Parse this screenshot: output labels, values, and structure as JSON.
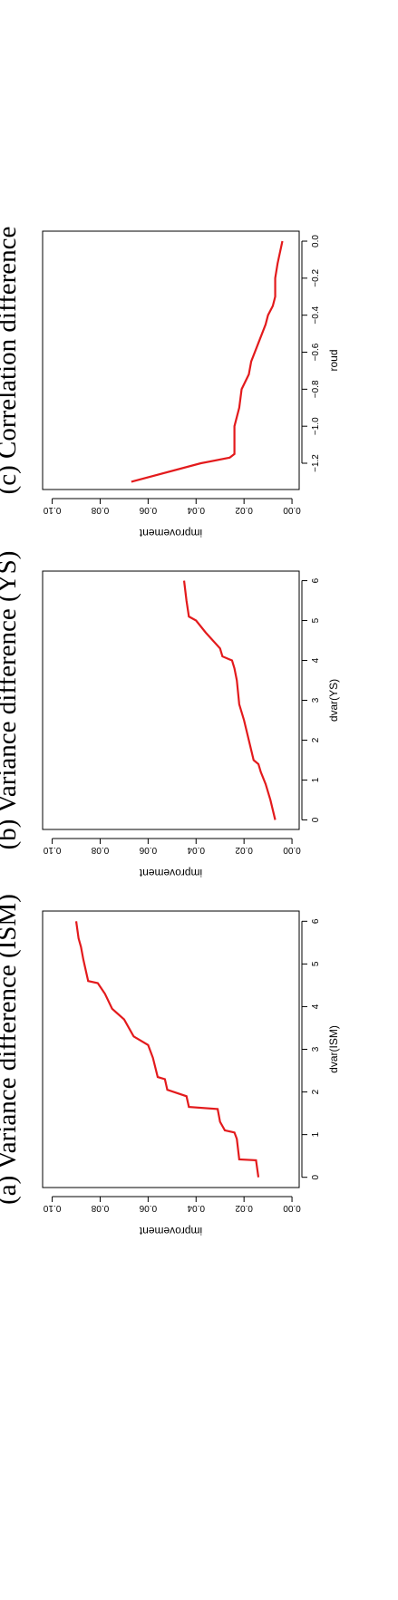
{
  "chart_data": [
    {
      "type": "line",
      "title": "(a) Variance difference (ISM)",
      "x_label": "dvar(ISM)",
      "y_label": "improvement",
      "x": [
        0,
        0.4,
        0.42,
        0.9,
        1.05,
        1.1,
        1.3,
        1.6,
        1.65,
        1.9,
        2.05,
        2.3,
        2.35,
        2.8,
        3.1,
        3.3,
        3.7,
        3.95,
        4.3,
        4.55,
        4.6,
        5.1,
        5.4,
        5.6,
        6
      ],
      "series": [
        {
          "color": "#e31a1c",
          "values": [
            0.014,
            0.015,
            0.022,
            0.023,
            0.024,
            0.028,
            0.03,
            0.031,
            0.043,
            0.044,
            0.052,
            0.053,
            0.056,
            0.058,
            0.06,
            0.066,
            0.07,
            0.075,
            0.078,
            0.081,
            0.085,
            0.087,
            0.088,
            0.089,
            0.09
          ]
        }
      ],
      "xlim": [
        -0.24,
        6.24
      ],
      "xticks": [
        0,
        1,
        2,
        3,
        4,
        5,
        6
      ],
      "ylim": [
        -0.003,
        0.104
      ],
      "yticks": [
        {
          "value": 0,
          "label": "0.00"
        },
        {
          "value": 0.02,
          "label": "0.02"
        },
        {
          "value": 0.04,
          "label": "0.04"
        },
        {
          "value": 0.06,
          "label": "0.06"
        },
        {
          "value": 0.08,
          "label": "0.08"
        },
        {
          "value": 0.1,
          "label": "0.10"
        }
      ]
    },
    {
      "type": "line",
      "title": "(b) Variance difference (YS)",
      "x_label": "dvar(YS)",
      "y_label": "improvement",
      "x": [
        0,
        0.5,
        0.9,
        1.2,
        1.4,
        1.5,
        2,
        2.5,
        2.9,
        3.5,
        3.8,
        4.0,
        4.1,
        4.3,
        4.7,
        5,
        5.1,
        5.5,
        6
      ],
      "series": [
        {
          "color": "#e31a1c",
          "values": [
            0.007,
            0.009,
            0.011,
            0.013,
            0.014,
            0.016,
            0.018,
            0.02,
            0.022,
            0.023,
            0.024,
            0.025,
            0.029,
            0.03,
            0.036,
            0.04,
            0.043,
            0.044,
            0.045
          ]
        }
      ],
      "xlim": [
        -0.24,
        6.24
      ],
      "xticks": [
        0,
        1,
        2,
        3,
        4,
        5,
        6
      ],
      "ylim": [
        -0.003,
        0.104
      ],
      "yticks": [
        {
          "value": 0,
          "label": "0.00"
        },
        {
          "value": 0.02,
          "label": "0.02"
        },
        {
          "value": 0.04,
          "label": "0.04"
        },
        {
          "value": 0.06,
          "label": "0.06"
        },
        {
          "value": 0.08,
          "label": "0.08"
        },
        {
          "value": 0.1,
          "label": "0.10"
        }
      ]
    },
    {
      "type": "line",
      "title": "(c) Correlation difference",
      "x_label": "roud",
      "y_label": "improvement",
      "x": [
        -1.3,
        -1.2,
        -1.17,
        -1.15,
        -1.0,
        -0.9,
        -0.8,
        -0.72,
        -0.65,
        -0.55,
        -0.45,
        -0.4,
        -0.35,
        -0.3,
        -0.2,
        -0.12,
        0
      ],
      "series": [
        {
          "color": "#e31a1c",
          "values": [
            0.067,
            0.038,
            0.026,
            0.024,
            0.024,
            0.022,
            0.021,
            0.018,
            0.017,
            0.014,
            0.011,
            0.01,
            0.008,
            0.007,
            0.007,
            0.006,
            0.004
          ]
        }
      ],
      "xlim": [
        -1.342,
        0.054
      ],
      "xticks": [
        {
          "value": -1.2,
          "label": "−1.2"
        },
        {
          "value": -1.0,
          "label": "−1.0"
        },
        {
          "value": -0.8,
          "label": "−0.8"
        },
        {
          "value": -0.6,
          "label": "−0.6"
        },
        {
          "value": -0.4,
          "label": "−0.4"
        },
        {
          "value": -0.2,
          "label": "−0.2"
        },
        {
          "value": 0,
          "label": "0.0"
        }
      ],
      "ylim": [
        -0.003,
        0.104
      ],
      "yticks": [
        {
          "value": 0,
          "label": "0.00"
        },
        {
          "value": 0.02,
          "label": "0.02"
        },
        {
          "value": 0.04,
          "label": "0.04"
        },
        {
          "value": 0.06,
          "label": "0.06"
        },
        {
          "value": 0.08,
          "label": "0.08"
        },
        {
          "value": 0.1,
          "label": "0.10"
        }
      ]
    }
  ]
}
